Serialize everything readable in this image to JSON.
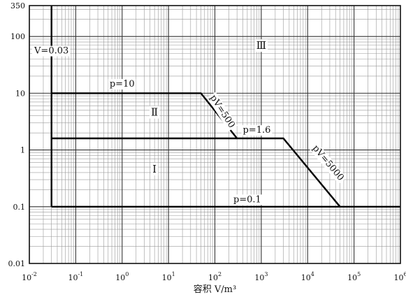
{
  "chart_data": {
    "type": "line",
    "title": "",
    "xlabel": "容积 V/m³",
    "ylabel": "",
    "x_scale": "log",
    "y_scale": "log",
    "xlim": [
      0.01,
      1000000
    ],
    "ylim": [
      0.01,
      350
    ],
    "grid": true,
    "x_ticks": [
      {
        "value": 0.01,
        "base": "10",
        "exp": "-2"
      },
      {
        "value": 0.1,
        "base": "10",
        "exp": "-1"
      },
      {
        "value": 1,
        "base": "10",
        "exp": "0"
      },
      {
        "value": 10,
        "base": "10",
        "exp": "1"
      },
      {
        "value": 100,
        "base": "10",
        "exp": "2"
      },
      {
        "value": 1000,
        "base": "10",
        "exp": "3"
      },
      {
        "value": 10000,
        "base": "10",
        "exp": "4"
      },
      {
        "value": 100000,
        "base": "10",
        "exp": "5"
      },
      {
        "value": 1000000,
        "base": "10",
        "exp": "6"
      }
    ],
    "y_ticks": [
      {
        "value": 0.01,
        "label": "0.01"
      },
      {
        "value": 0.1,
        "label": "0.1"
      },
      {
        "value": 1,
        "label": "1"
      },
      {
        "value": 10,
        "label": "10"
      },
      {
        "value": 100,
        "label": "100"
      },
      {
        "value": 350,
        "label": "350"
      }
    ],
    "series": [
      {
        "values": [
          [
            0.03,
            0.1
          ],
          [
            50000,
            0.1
          ],
          [
            1000000,
            0.1
          ]
        ]
      },
      {
        "values": [
          [
            0.03,
            1.6
          ],
          [
            300,
            1.6
          ],
          [
            3000,
            1.6
          ],
          [
            50000,
            0.1
          ]
        ]
      },
      {
        "values": [
          [
            0.03,
            10
          ],
          [
            50,
            10
          ],
          [
            300,
            1.6
          ]
        ]
      },
      {
        "values": [
          [
            0.03,
            0.1
          ],
          [
            0.03,
            350
          ]
        ]
      }
    ],
    "annotations": [
      {
        "text": "V=0.03",
        "x": 0.03,
        "y": 50
      },
      {
        "text": "p=10",
        "x": 1,
        "y": 13
      },
      {
        "text": "p=1.6",
        "x": 800,
        "y": 2.0
      },
      {
        "text": "p=0.1",
        "x": 500,
        "y": 0.12
      },
      {
        "text": "pV=500",
        "x": 130,
        "y": 4.5,
        "rotate": 57
      },
      {
        "text": "pV=5000",
        "x": 25000,
        "y": 0.55,
        "rotate": 50
      },
      {
        "text": "Ⅲ",
        "x": 1000,
        "y": 60
      },
      {
        "text": "Ⅱ",
        "x": 5,
        "y": 4
      },
      {
        "text": "Ⅰ",
        "x": 5,
        "y": 0.4
      }
    ]
  }
}
